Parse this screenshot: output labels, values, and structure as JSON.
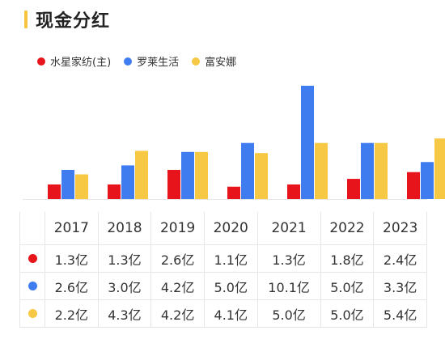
{
  "title": "现金分红",
  "colors": {
    "red": "#e8141b",
    "blue": "#3f7cf0",
    "yellow": "#f7c843",
    "accent": "#f6c441"
  },
  "chart_data": {
    "type": "bar",
    "categories": [
      "2017",
      "2018",
      "2019",
      "2020",
      "2021",
      "2022",
      "2023"
    ],
    "series": [
      {
        "name": "水星家纺(主)",
        "color": "#e8141b",
        "values": [
          1.3,
          1.3,
          2.6,
          1.1,
          1.3,
          1.8,
          2.4
        ]
      },
      {
        "name": "罗莱生活",
        "color": "#3f7cf0",
        "values": [
          2.6,
          3.0,
          4.2,
          5.0,
          10.1,
          5.0,
          3.3
        ]
      },
      {
        "name": "富安娜",
        "color": "#f7c843",
        "values": [
          2.2,
          4.3,
          4.2,
          4.1,
          5.0,
          5.0,
          5.4
        ]
      }
    ],
    "ylim": [
      0,
      10.1
    ],
    "grid": false,
    "legend": "top-left"
  },
  "table": {
    "years": [
      "2017",
      "2018",
      "2019",
      "2020",
      "2021",
      "2022",
      "2023"
    ],
    "rows": [
      {
        "color": "#e8141b",
        "cells": [
          "1.3亿",
          "1.3亿",
          "2.6亿",
          "1.1亿",
          "1.3亿",
          "1.8亿",
          "2.4亿"
        ]
      },
      {
        "color": "#3f7cf0",
        "cells": [
          "2.6亿",
          "3.0亿",
          "4.2亿",
          "5.0亿",
          "10.1亿",
          "5.0亿",
          "3.3亿"
        ]
      },
      {
        "color": "#f7c843",
        "cells": [
          "2.2亿",
          "4.3亿",
          "4.2亿",
          "4.1亿",
          "5.0亿",
          "5.0亿",
          "5.4亿"
        ]
      }
    ]
  }
}
